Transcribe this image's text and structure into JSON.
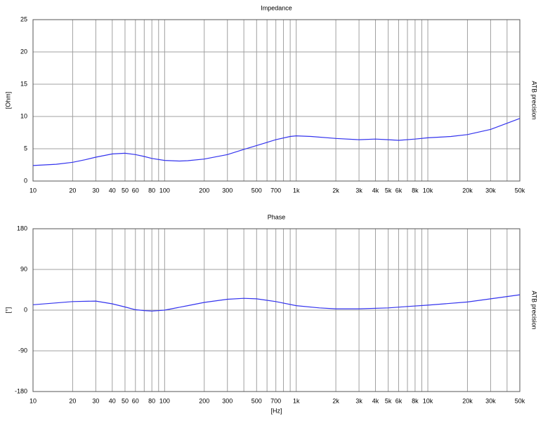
{
  "chart_data": [
    {
      "type": "line",
      "title": "Impedance",
      "ylabel": "[Ohm]",
      "side_label": "ATB precision",
      "xscale": "log",
      "xlim": [
        10,
        50000
      ],
      "ylim": [
        0,
        25
      ],
      "color": "#3333ee",
      "grid": true,
      "xticks": [
        10,
        20,
        30,
        40,
        50,
        60,
        80,
        100,
        200,
        300,
        500,
        700,
        {
          "value": 1000,
          "label": "1k"
        },
        {
          "value": 2000,
          "label": "2k"
        },
        {
          "value": 3000,
          "label": "3k"
        },
        {
          "value": 4000,
          "label": "4k"
        },
        {
          "value": 5000,
          "label": "5k"
        },
        {
          "value": 6000,
          "label": "6k"
        },
        {
          "value": 8000,
          "label": "8k"
        },
        {
          "value": 10000,
          "label": "10k"
        },
        {
          "value": 20000,
          "label": "20k"
        },
        {
          "value": 30000,
          "label": "30k"
        },
        {
          "value": 50000,
          "label": "50k"
        }
      ],
      "xminor": [
        70,
        90,
        400,
        600,
        800,
        900,
        7000,
        9000,
        40000
      ],
      "yticks": [
        0,
        5,
        10,
        15,
        20,
        25
      ],
      "x": [
        10,
        15,
        20,
        25,
        30,
        40,
        50,
        60,
        70,
        80,
        100,
        130,
        150,
        200,
        300,
        400,
        500,
        700,
        900,
        1000,
        1300,
        2000,
        3000,
        4000,
        5000,
        6000,
        8000,
        10000,
        15000,
        20000,
        30000,
        50000
      ],
      "values": [
        2.4,
        2.6,
        2.9,
        3.3,
        3.7,
        4.2,
        4.3,
        4.1,
        3.8,
        3.5,
        3.2,
        3.1,
        3.15,
        3.4,
        4.1,
        4.9,
        5.5,
        6.4,
        6.9,
        7.0,
        6.9,
        6.6,
        6.4,
        6.5,
        6.4,
        6.3,
        6.5,
        6.7,
        6.9,
        7.2,
        8.0,
        9.7
      ]
    },
    {
      "type": "line",
      "title": "Phase",
      "ylabel": "[°]",
      "xlabel": "[Hz]",
      "side_label": "ATB precision",
      "xscale": "log",
      "xlim": [
        10,
        50000
      ],
      "ylim": [
        -180,
        180
      ],
      "color": "#3333ee",
      "grid": true,
      "xticks": [
        10,
        20,
        30,
        40,
        50,
        60,
        80,
        100,
        200,
        300,
        500,
        700,
        {
          "value": 1000,
          "label": "1k"
        },
        {
          "value": 2000,
          "label": "2k"
        },
        {
          "value": 3000,
          "label": "3k"
        },
        {
          "value": 4000,
          "label": "4k"
        },
        {
          "value": 5000,
          "label": "5k"
        },
        {
          "value": 6000,
          "label": "6k"
        },
        {
          "value": 8000,
          "label": "8k"
        },
        {
          "value": 10000,
          "label": "10k"
        },
        {
          "value": 20000,
          "label": "20k"
        },
        {
          "value": 30000,
          "label": "30k"
        },
        {
          "value": 50000,
          "label": "50k"
        }
      ],
      "xminor": [
        70,
        90,
        400,
        600,
        800,
        900,
        7000,
        9000,
        40000
      ],
      "yticks": [
        -180,
        -90,
        0,
        90,
        180
      ],
      "x": [
        10,
        15,
        20,
        30,
        40,
        50,
        60,
        70,
        80,
        100,
        150,
        200,
        300,
        400,
        500,
        700,
        1000,
        1500,
        2000,
        3000,
        5000,
        7000,
        10000,
        20000,
        30000,
        50000
      ],
      "values": [
        12,
        16,
        19,
        20,
        14,
        7,
        1,
        -1,
        -2,
        0,
        10,
        17,
        24,
        26,
        25,
        19,
        10,
        5,
        3,
        3,
        5,
        8,
        11,
        18,
        25,
        34
      ]
    }
  ]
}
